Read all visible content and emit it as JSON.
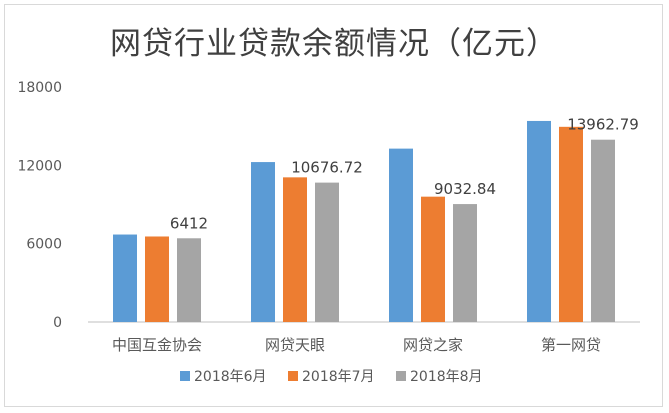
{
  "chart_data": {
    "type": "bar",
    "title": "网贷行业贷款余额情况（亿元）",
    "categories": [
      "中国互金协会",
      "网贷天眼",
      "网贷之家",
      "第一网贷"
    ],
    "series": [
      {
        "name": "2018年6月",
        "color": "#5b9bd5",
        "values": [
          6700,
          12250,
          13280,
          15400
        ]
      },
      {
        "name": "2018年7月",
        "color": "#ed7d31",
        "values": [
          6550,
          11080,
          9600,
          14950
        ]
      },
      {
        "name": "2018年8月",
        "color": "#a5a5a5",
        "values": [
          6412,
          10676.72,
          9032.84,
          13962.79
        ]
      }
    ],
    "data_labels": [
      {
        "category_index": 0,
        "series_index": 2,
        "text": "6412"
      },
      {
        "category_index": 1,
        "series_index": 2,
        "text": "10676.72"
      },
      {
        "category_index": 2,
        "series_index": 2,
        "text": "9032.84"
      },
      {
        "category_index": 3,
        "series_index": 2,
        "text": "13962.79"
      }
    ],
    "y_ticks": [
      "0",
      "6000",
      "12000",
      "18000"
    ],
    "ylim": [
      0,
      18000
    ],
    "xlabel": "",
    "ylabel": "",
    "grid": false,
    "legend_position": "bottom"
  }
}
